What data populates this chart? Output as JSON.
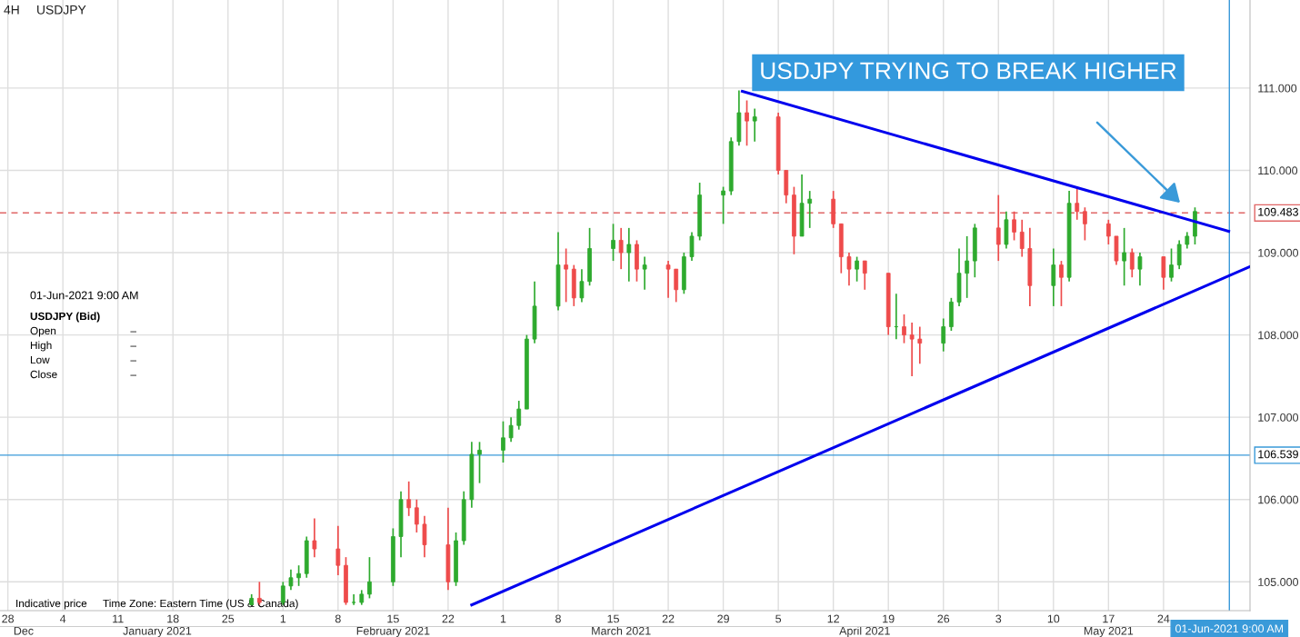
{
  "chart_data": {
    "type": "candlestick",
    "title": "4H",
    "subtitle": "USDJPY",
    "x": [
      "2021-01-28",
      "2021-01-29",
      "2021-02-01",
      "2021-02-02",
      "2021-02-03",
      "2021-02-04",
      "2021-02-05",
      "2021-02-08",
      "2021-02-09",
      "2021-02-10",
      "2021-02-11",
      "2021-02-12",
      "2021-02-15",
      "2021-02-16",
      "2021-02-17",
      "2021-02-18",
      "2021-02-19",
      "2021-02-22",
      "2021-02-23",
      "2021-02-24",
      "2021-02-25",
      "2021-02-26",
      "2021-03-01",
      "2021-03-02",
      "2021-03-03",
      "2021-03-04",
      "2021-03-05",
      "2021-03-08",
      "2021-03-09",
      "2021-03-10",
      "2021-03-11",
      "2021-03-12",
      "2021-03-15",
      "2021-03-16",
      "2021-03-17",
      "2021-03-18",
      "2021-03-19",
      "2021-03-22",
      "2021-03-23",
      "2021-03-24",
      "2021-03-25",
      "2021-03-26",
      "2021-03-29",
      "2021-03-30",
      "2021-03-31",
      "2021-04-01",
      "2021-04-02",
      "2021-04-05",
      "2021-04-06",
      "2021-04-07",
      "2021-04-08",
      "2021-04-09",
      "2021-04-12",
      "2021-04-13",
      "2021-04-14",
      "2021-04-15",
      "2021-04-16",
      "2021-04-19",
      "2021-04-20",
      "2021-04-21",
      "2021-04-22",
      "2021-04-23",
      "2021-04-26",
      "2021-04-27",
      "2021-04-28",
      "2021-04-29",
      "2021-04-30",
      "2021-05-03",
      "2021-05-04",
      "2021-05-05",
      "2021-05-06",
      "2021-05-07",
      "2021-05-10",
      "2021-05-11",
      "2021-05-12",
      "2021-05-13",
      "2021-05-14",
      "2021-05-17",
      "2021-05-18",
      "2021-05-19",
      "2021-05-20",
      "2021-05-21",
      "2021-05-24",
      "2021-05-25",
      "2021-05-26",
      "2021-05-27",
      "2021-05-28"
    ],
    "ohlc": [
      [
        104.72,
        104.85,
        104.72,
        104.8
      ],
      [
        104.8,
        105.0,
        104.72,
        104.75
      ],
      [
        104.75,
        105.0,
        104.72,
        104.95
      ],
      [
        104.95,
        105.15,
        104.9,
        105.05
      ],
      [
        105.05,
        105.2,
        104.95,
        105.1
      ],
      [
        105.1,
        105.55,
        105.05,
        105.5
      ],
      [
        105.5,
        105.77,
        105.3,
        105.4
      ],
      [
        105.4,
        105.68,
        105.08,
        105.2
      ],
      [
        105.2,
        105.3,
        104.72,
        104.75
      ],
      [
        104.75,
        104.85,
        104.72,
        104.75
      ],
      [
        104.75,
        104.9,
        104.72,
        104.85
      ],
      [
        104.85,
        105.3,
        104.8,
        105.0
      ],
      [
        105.0,
        105.65,
        104.95,
        105.55
      ],
      [
        105.55,
        106.1,
        105.3,
        106.0
      ],
      [
        106.0,
        106.22,
        105.8,
        105.9
      ],
      [
        105.9,
        106.0,
        105.6,
        105.7
      ],
      [
        105.7,
        105.8,
        105.3,
        105.45
      ],
      [
        105.45,
        105.9,
        104.9,
        105.0
      ],
      [
        105.0,
        105.6,
        104.95,
        105.5
      ],
      [
        105.5,
        106.1,
        105.45,
        106.0
      ],
      [
        106.0,
        106.7,
        105.9,
        106.55
      ],
      [
        106.55,
        106.7,
        106.2,
        106.6
      ],
      [
        106.6,
        106.95,
        106.45,
        106.75
      ],
      [
        106.75,
        107.0,
        106.7,
        106.9
      ],
      [
        106.9,
        107.2,
        106.85,
        107.1
      ],
      [
        107.1,
        108.0,
        107.1,
        107.95
      ],
      [
        107.95,
        108.65,
        107.9,
        108.35
      ],
      [
        108.35,
        109.25,
        108.3,
        108.85
      ],
      [
        108.85,
        109.05,
        108.4,
        108.8
      ],
      [
        108.8,
        108.85,
        108.35,
        108.45
      ],
      [
        108.45,
        108.8,
        108.4,
        108.65
      ],
      [
        108.65,
        109.3,
        108.6,
        109.05
      ],
      [
        109.05,
        109.35,
        108.9,
        109.15
      ],
      [
        109.15,
        109.3,
        108.8,
        109.0
      ],
      [
        109.0,
        109.3,
        108.65,
        109.1
      ],
      [
        109.1,
        109.15,
        108.65,
        108.8
      ],
      [
        108.8,
        108.95,
        108.55,
        108.85
      ],
      [
        108.85,
        108.9,
        108.45,
        108.8
      ],
      [
        108.8,
        108.8,
        108.4,
        108.55
      ],
      [
        108.55,
        109.0,
        108.5,
        108.95
      ],
      [
        108.95,
        109.25,
        108.9,
        109.2
      ],
      [
        109.2,
        109.85,
        109.15,
        109.7
      ],
      [
        109.7,
        109.8,
        109.35,
        109.75
      ],
      [
        109.75,
        110.4,
        109.7,
        110.35
      ],
      [
        110.35,
        110.97,
        110.3,
        110.7
      ],
      [
        110.7,
        110.85,
        110.3,
        110.6
      ],
      [
        110.6,
        110.75,
        110.35,
        110.65
      ],
      [
        110.65,
        110.7,
        109.95,
        110.0
      ],
      [
        110.0,
        110.0,
        109.6,
        109.7
      ],
      [
        109.7,
        109.8,
        108.98,
        109.2
      ],
      [
        109.2,
        109.95,
        109.2,
        109.6
      ],
      [
        109.6,
        109.75,
        109.3,
        109.65
      ],
      [
        109.65,
        109.75,
        109.3,
        109.35
      ],
      [
        109.35,
        109.35,
        108.75,
        108.95
      ],
      [
        108.95,
        109.0,
        108.6,
        108.8
      ],
      [
        108.8,
        108.95,
        108.65,
        108.9
      ],
      [
        108.9,
        108.9,
        108.55,
        108.75
      ],
      [
        108.75,
        108.75,
        108.0,
        108.1
      ],
      [
        108.1,
        108.5,
        107.95,
        108.1
      ],
      [
        108.1,
        108.25,
        107.9,
        108.0
      ],
      [
        108.0,
        108.15,
        107.5,
        107.95
      ],
      [
        107.95,
        108.1,
        107.65,
        107.9
      ],
      [
        107.9,
        108.2,
        107.8,
        108.1
      ],
      [
        108.1,
        108.45,
        108.05,
        108.4
      ],
      [
        108.4,
        109.05,
        108.35,
        108.75
      ],
      [
        108.75,
        109.2,
        108.45,
        108.9
      ],
      [
        108.9,
        109.35,
        108.7,
        109.3
      ],
      [
        109.3,
        109.7,
        108.9,
        109.1
      ],
      [
        109.1,
        109.5,
        109.05,
        109.4
      ],
      [
        109.4,
        109.5,
        109.15,
        109.25
      ],
      [
        109.25,
        109.4,
        108.95,
        109.05
      ],
      [
        109.05,
        109.3,
        108.35,
        108.6
      ],
      [
        108.6,
        109.05,
        108.35,
        108.85
      ],
      [
        108.85,
        108.9,
        108.35,
        108.7
      ],
      [
        108.7,
        109.75,
        108.65,
        109.6
      ],
      [
        109.6,
        109.8,
        109.4,
        109.5
      ],
      [
        109.5,
        109.55,
        109.15,
        109.35
      ],
      [
        109.35,
        109.4,
        109.1,
        109.2
      ],
      [
        109.2,
        109.2,
        108.85,
        108.9
      ],
      [
        108.9,
        109.3,
        108.6,
        109.0
      ],
      [
        109.0,
        109.05,
        108.7,
        108.8
      ],
      [
        108.8,
        109.0,
        108.6,
        108.95
      ],
      [
        108.95,
        108.95,
        108.55,
        108.7
      ],
      [
        108.7,
        109.05,
        108.65,
        108.85
      ],
      [
        108.85,
        109.15,
        108.8,
        109.1
      ],
      [
        109.1,
        109.25,
        109.05,
        109.2
      ],
      [
        109.2,
        109.55,
        109.1,
        109.5
      ]
    ],
    "series": [
      {
        "type": "line",
        "x": [
          "2021-03-31T10:00",
          "2021-06-01T07:00"
        ],
        "values": [
          110.96,
          109.26
        ],
        "color": "#0000ee"
      },
      {
        "type": "line",
        "x": [
          "2021-02-25",
          "2021-06-04"
        ],
        "values": [
          104.72,
          108.83
        ],
        "color": "#0000ee"
      }
    ],
    "xlim": [
      "2020-12-27",
      "2021-06-04"
    ],
    "x2lim": [
      "2020-12-27",
      "2021-06-04"
    ],
    "xticks": [
      {
        "value": "2020-12-28",
        "label": "28"
      },
      {
        "value": "2021-01-04",
        "label": "4"
      },
      {
        "value": "2021-01-11",
        "label": "11"
      },
      {
        "value": "2021-01-18",
        "label": "18"
      },
      {
        "value": "2021-01-25",
        "label": "25"
      },
      {
        "value": "2021-02-01",
        "label": "1"
      },
      {
        "value": "2021-02-08",
        "label": "8"
      },
      {
        "value": "2021-02-15",
        "label": "15"
      },
      {
        "value": "2021-02-22",
        "label": "22"
      },
      {
        "value": "2021-03-01",
        "label": "1"
      },
      {
        "value": "2021-03-08",
        "label": "8"
      },
      {
        "value": "2021-03-15",
        "label": "15"
      },
      {
        "value": "2021-03-22",
        "label": "22"
      },
      {
        "value": "2021-03-29",
        "label": "29"
      },
      {
        "value": "2021-04-05",
        "label": "5"
      },
      {
        "value": "2021-04-12",
        "label": "12"
      },
      {
        "value": "2021-04-19",
        "label": "19"
      },
      {
        "value": "2021-04-26",
        "label": "26"
      },
      {
        "value": "2021-05-03",
        "label": "3"
      },
      {
        "value": "2021-05-10",
        "label": "10"
      },
      {
        "value": "2021-05-17",
        "label": "17"
      },
      {
        "value": "2021-05-24",
        "label": "24"
      }
    ],
    "x2ticks": [
      {
        "value": "2020-12-30",
        "label": "Dec"
      },
      {
        "value": "2021-01-16",
        "label": "January 2021"
      },
      {
        "value": "2021-02-15",
        "label": "February 2021"
      },
      {
        "value": "2021-03-16",
        "label": "March 2021"
      },
      {
        "value": "2021-04-16",
        "label": "April 2021"
      },
      {
        "value": "2021-05-17",
        "label": "May 2021"
      }
    ],
    "ylim": [
      104.65,
      112.07
    ],
    "yticks": [
      {
        "value": 105,
        "label": "105.000"
      },
      {
        "value": 106,
        "label": "106.000"
      },
      {
        "value": 107,
        "label": "107.000"
      },
      {
        "value": 108,
        "label": "108.000"
      },
      {
        "value": 109,
        "label": "109.000"
      },
      {
        "value": 110,
        "label": "110.000"
      },
      {
        "value": 111,
        "label": "111.000"
      }
    ],
    "ref_lines": [
      {
        "axis": "y",
        "value": 109.483,
        "label": "109.483",
        "color": "#e06666",
        "line_style": "dashed"
      },
      {
        "axis": "y",
        "value": 106.539,
        "label": "106.539",
        "color": "#3a9ad9",
        "line_style": "solid"
      },
      {
        "axis": "x",
        "value": "2021-06-01T09:00",
        "label": "01-Jun-2021 9:00 AM",
        "color": "#3a9ad9",
        "line_style": "solid"
      }
    ],
    "annotations": [
      "USDJPY TRYING TO BREAK HIGHER",
      "Indicative price",
      "Time Zone: Eastern Time (US & Canada)",
      "01-Jun-2021 9:00 AM",
      "USDJPY (Bid)",
      "Open",
      "–",
      "High",
      "–",
      "Low",
      "–",
      "Close",
      "–"
    ],
    "grid": true
  }
}
